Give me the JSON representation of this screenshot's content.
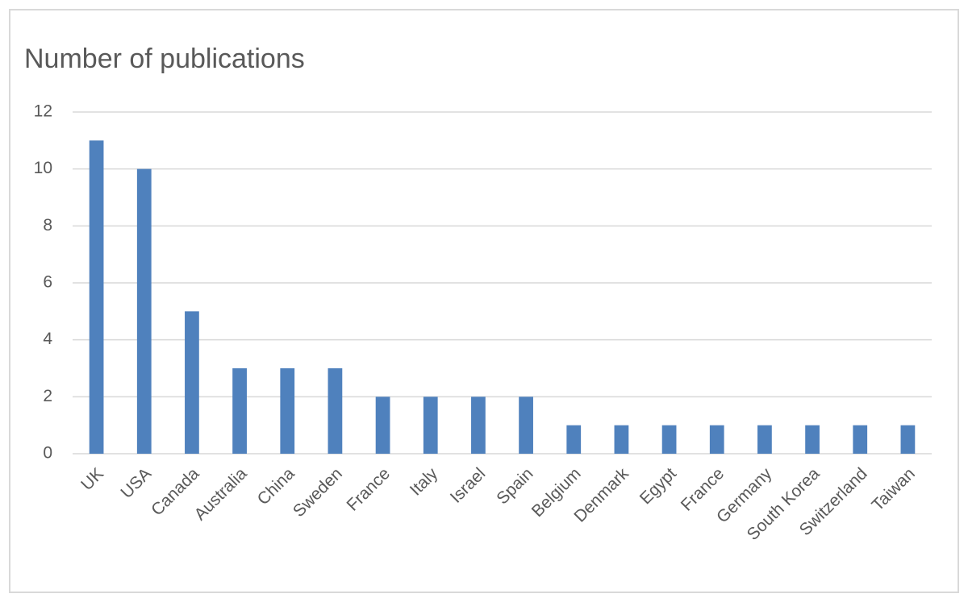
{
  "chart_data": {
    "type": "bar",
    "title": "Number of publications",
    "categories": [
      "UK",
      "USA",
      "Canada",
      "Australia",
      "China",
      "Sweden",
      "France",
      "Italy",
      "Israel",
      "Spain",
      "Belgium",
      "Denmark",
      "Egypt",
      "France",
      "Germany",
      "South Korea",
      "Switzerland",
      "Taiwan"
    ],
    "values": [
      11,
      10,
      5,
      3,
      3,
      3,
      2,
      2,
      2,
      2,
      1,
      1,
      1,
      1,
      1,
      1,
      1,
      1
    ],
    "color": "#4f81bd",
    "ylim": [
      0,
      12
    ],
    "yticks": [
      0,
      2,
      4,
      6,
      8,
      10,
      12
    ],
    "grid": true
  }
}
